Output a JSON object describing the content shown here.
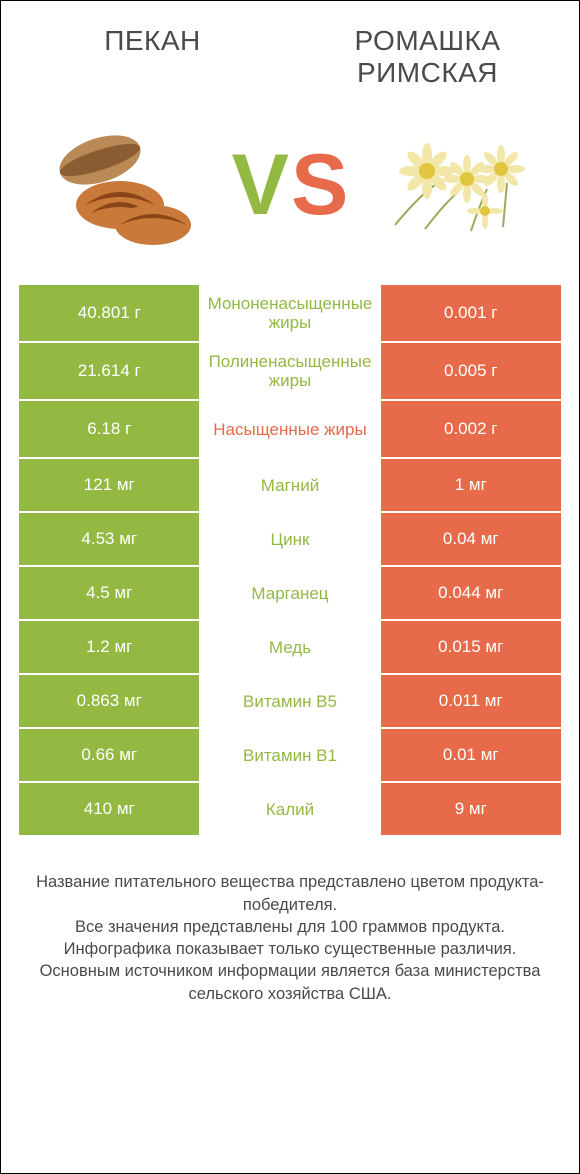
{
  "titles": {
    "left": "ПЕКАН",
    "right": "РОМАШКА\nРИМСКАЯ"
  },
  "vs": {
    "v": "V",
    "s": "S",
    "v_color": "#93b943",
    "s_color": "#e76a4b"
  },
  "colors": {
    "left_bg": "#93b943",
    "right_bg": "#e76a4b",
    "mid_bg": "#ffffff",
    "label_left": "#93b943",
    "label_right": "#e76a4b",
    "value_text": "#ffffff",
    "border_between_rows": "#ffffff"
  },
  "layout": {
    "row_height_multi": 56,
    "row_height_single": 52,
    "value_fontsize": 17,
    "label_fontsize": 17
  },
  "rows": [
    {
      "label": "Мононенасыщенные жиры",
      "left": "40.801 г",
      "right": "0.001 г",
      "winner": "left",
      "multiline": true
    },
    {
      "label": "Полиненасыщенные жиры",
      "left": "21.614 г",
      "right": "0.005 г",
      "winner": "left",
      "multiline": true
    },
    {
      "label": "Насыщенные жиры",
      "left": "6.18 г",
      "right": "0.002 г",
      "winner": "right",
      "multiline": true
    },
    {
      "label": "Магний",
      "left": "121 мг",
      "right": "1 мг",
      "winner": "left",
      "multiline": false
    },
    {
      "label": "Цинк",
      "left": "4.53 мг",
      "right": "0.04 мг",
      "winner": "left",
      "multiline": false
    },
    {
      "label": "Марганец",
      "left": "4.5 мг",
      "right": "0.044 мг",
      "winner": "left",
      "multiline": false
    },
    {
      "label": "Медь",
      "left": "1.2 мг",
      "right": "0.015 мг",
      "winner": "left",
      "multiline": false
    },
    {
      "label": "Витамин B5",
      "left": "0.863 мг",
      "right": "0.011 мг",
      "winner": "left",
      "multiline": false
    },
    {
      "label": "Витамин B1",
      "left": "0.66 мг",
      "right": "0.01 мг",
      "winner": "left",
      "multiline": false
    },
    {
      "label": "Калий",
      "left": "410 мг",
      "right": "9 мг",
      "winner": "left",
      "multiline": false
    }
  ],
  "footer": [
    "Название питательного вещества представлено цветом продукта-победителя.",
    "Все значения представлены для 100 граммов продукта.",
    "Инфографика показывает только существенные различия.",
    "Основным источником информации является база министерства сельского хозяйства США."
  ]
}
